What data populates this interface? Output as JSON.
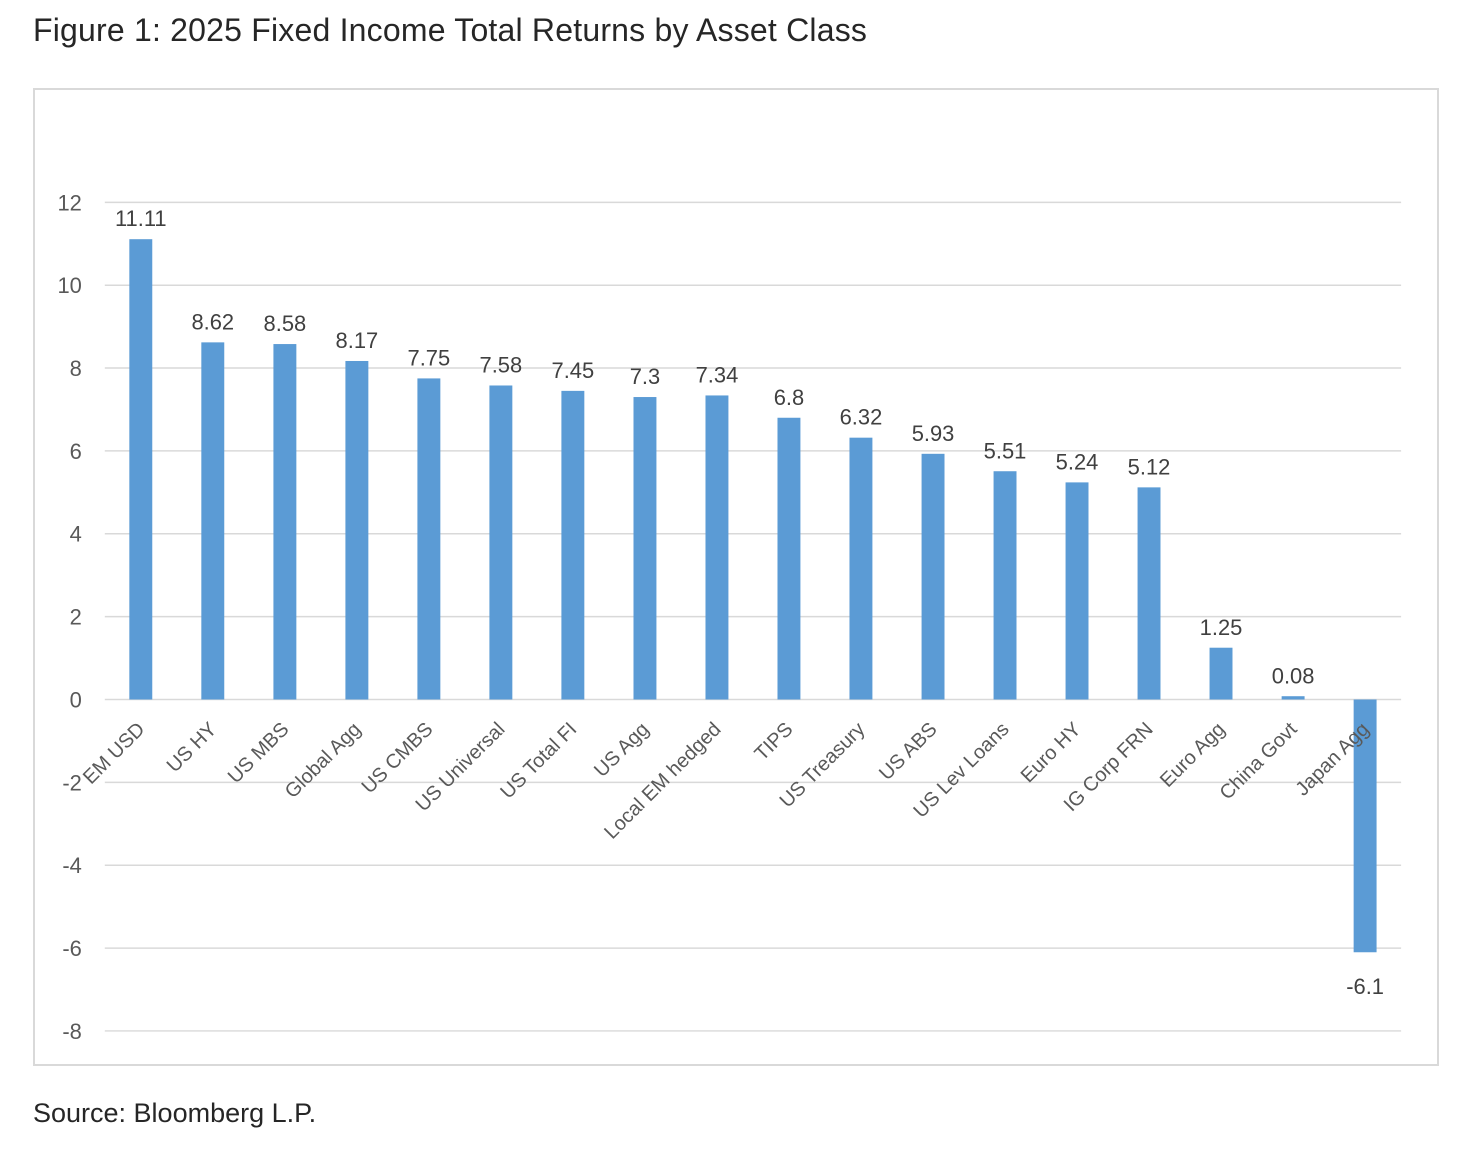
{
  "page": {
    "title": "Figure 1: 2025 Fixed Income Total Returns by Asset Class",
    "source": "Source: Bloomberg L.P."
  },
  "chart_data": {
    "type": "bar",
    "title": "Figure 1: 2025 Fixed Income Total Returns by Asset Class",
    "categories": [
      "EM USD",
      "US HY",
      "US MBS",
      "Global Agg",
      "US CMBS",
      "US Universal",
      "US Total FI",
      "US Agg",
      "Local EM hedged",
      "TIPS",
      "US Treasury",
      "US ABS",
      "US Lev Loans",
      "Euro HY",
      "IG Corp FRN",
      "Euro Agg",
      "China Govt",
      "Japan Agg"
    ],
    "values": [
      11.11,
      8.62,
      8.58,
      8.17,
      7.75,
      7.58,
      7.45,
      7.3,
      7.34,
      6.8,
      6.32,
      5.93,
      5.51,
      5.24,
      5.12,
      1.25,
      0.08,
      -6.1
    ],
    "xlabel": "",
    "ylabel": "",
    "ylim": [
      -8,
      12
    ],
    "yticks": [
      -8,
      -6,
      -4,
      -2,
      0,
      2,
      4,
      6,
      8,
      10,
      12
    ],
    "grid": true,
    "legend": "none",
    "data_labels": true,
    "source": "Source: Bloomberg L.P.",
    "colors": {
      "bar": "#5B9BD5",
      "gridline": "#D9D9D9",
      "frame_border": "#D9D9D9",
      "axis_text": "#595959",
      "value_label_text": "#404040",
      "title_text": "#262626"
    }
  }
}
